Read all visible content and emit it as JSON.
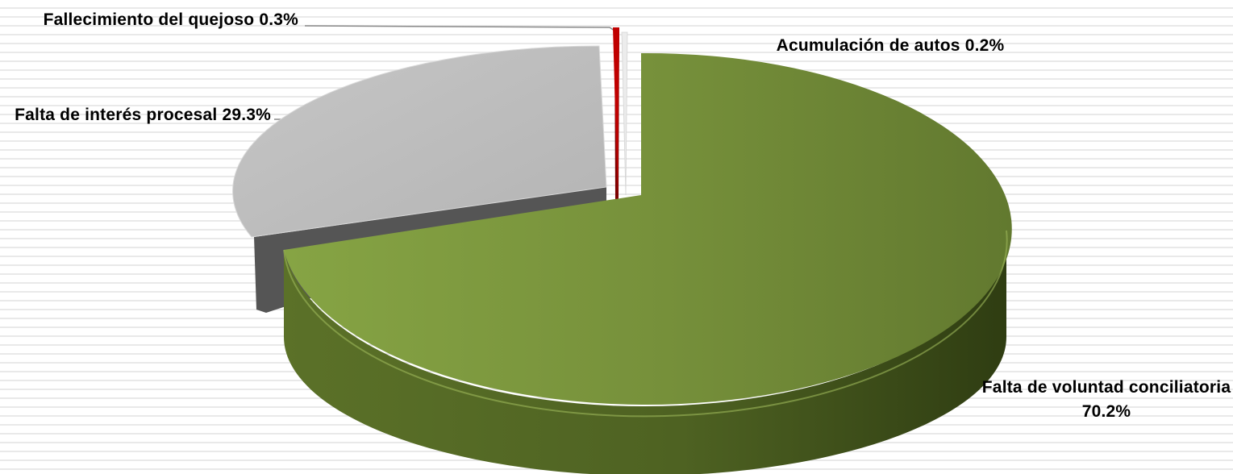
{
  "chart_data": {
    "type": "pie",
    "title": "",
    "exploded": true,
    "three_d": true,
    "legend": "none",
    "slices": [
      {
        "label": "Falta de voluntad conciliatoria",
        "value": 70.2,
        "display": "70.2%",
        "color": "#77913b"
      },
      {
        "label": "Falta de interés procesal",
        "value": 29.3,
        "display": "29.3%",
        "color": "#bdbdbd"
      },
      {
        "label": "Fallecimiento del quejoso",
        "value": 0.3,
        "display": "0.3%",
        "color": "#c00000"
      },
      {
        "label": "Acumulación de autos",
        "value": 0.2,
        "display": "0.2%",
        "color": "#e8e8e8"
      }
    ]
  }
}
